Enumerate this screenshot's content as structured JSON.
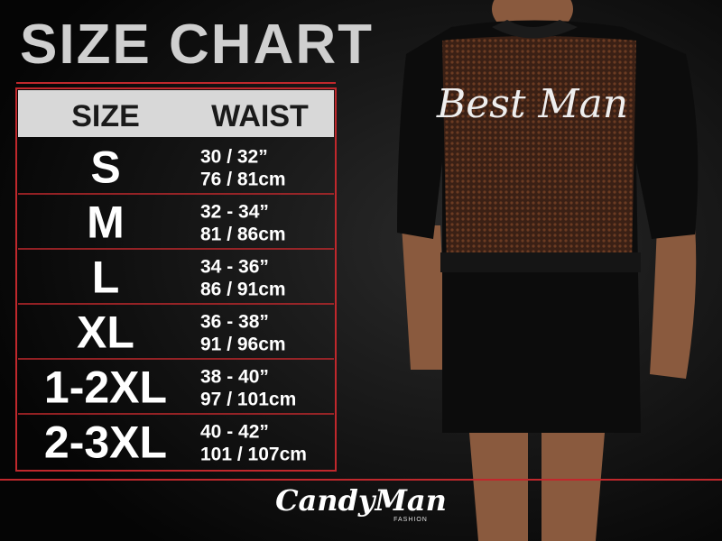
{
  "header": {
    "title": "SIZE CHART"
  },
  "table": {
    "columns": [
      "SIZE",
      "WAIST"
    ],
    "rows": [
      [
        "S",
        "30 / 32”",
        "76 / 81cm"
      ],
      [
        "M",
        "32 - 34”",
        "81 / 86cm"
      ],
      [
        "L",
        "34 - 36”",
        "86 / 91cm"
      ],
      [
        "XL",
        "36 - 38”",
        "91 / 96cm"
      ],
      [
        "1-2XL",
        "38 - 40”",
        "97 / 101cm"
      ],
      [
        "2-3XL",
        "40 - 42”",
        "101 / 107cm"
      ]
    ]
  },
  "product": {
    "print": "Best Man"
  },
  "brand": {
    "name": "CandyMan",
    "tagline": "FASHION"
  }
}
